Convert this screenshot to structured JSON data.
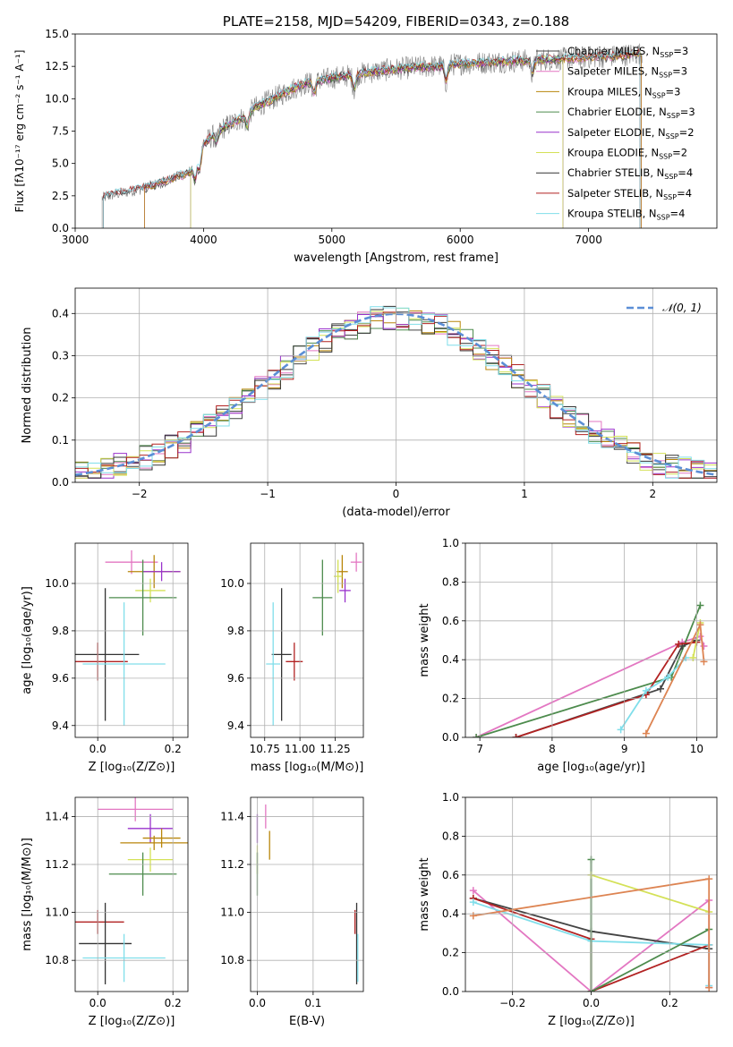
{
  "colors": {
    "Chabrier MILES": "#444444",
    "Salpeter MILES": "#e377c2",
    "Kroupa MILES": "#b8860b",
    "Chabrier ELODIE": "#4d8b4d",
    "Salpeter ELODIE": "#9932cc",
    "Kroupa ELODIE": "#d4e157",
    "Chabrier STELIB": "#333333",
    "Salpeter STELIB": "#b22222",
    "Kroupa STELIB": "#80deea",
    "orange_line": "#dd8452",
    "gauss": "#5b8ed6",
    "spectrum_base": "#808080"
  },
  "chart_data": [
    {
      "id": "spectrum",
      "type": "line",
      "title": "PLATE=2158, MJD=54209, FIBERID=0343, z=0.188",
      "xlabel": "wavelength [Angstrom, rest frame]",
      "ylabel": "Flux [fλ10⁻¹⁷ erg cm⁻² s⁻¹ A⁻¹]",
      "xlim": [
        3000,
        8000
      ],
      "ylim": [
        0,
        15
      ],
      "xticks": [
        3000,
        4000,
        5000,
        6000,
        7000
      ],
      "yticks": [
        0.0,
        2.5,
        5.0,
        7.5,
        10.0,
        12.5,
        15.0
      ],
      "grid": false,
      "legend_position": "right",
      "legend": [
        {
          "name": "Chabrier MILES",
          "nssp": "3"
        },
        {
          "name": "Salpeter MILES",
          "nssp": "3"
        },
        {
          "name": "Kroupa MILES",
          "nssp": "3"
        },
        {
          "name": "Chabrier ELODIE",
          "nssp": "3"
        },
        {
          "name": "Salpeter ELODIE",
          "nssp": "2"
        },
        {
          "name": "Kroupa ELODIE",
          "nssp": "2"
        },
        {
          "name": "Chabrier STELIB",
          "nssp": "4"
        },
        {
          "name": "Salpeter STELIB",
          "nssp": "4"
        },
        {
          "name": "Kroupa STELIB",
          "nssp": "4"
        }
      ],
      "continuum": {
        "x": [
          3200,
          3300,
          3400,
          3500,
          3600,
          3700,
          3800,
          3900,
          4000,
          4100,
          4200,
          4300,
          4400,
          4500,
          4600,
          4700,
          4800,
          4900,
          5000,
          5200,
          5400,
          5600,
          5800,
          6000,
          6200,
          6400,
          6600,
          6800,
          7000,
          7200,
          7400
        ],
        "y": [
          2.3,
          2.6,
          2.8,
          3.0,
          3.3,
          3.6,
          4.0,
          4.4,
          6.5,
          7.4,
          8.0,
          8.5,
          9.3,
          9.8,
          10.3,
          10.8,
          11.2,
          11.4,
          11.6,
          11.9,
          12.2,
          12.4,
          12.5,
          12.7,
          12.8,
          12.9,
          13.0,
          13.1,
          13.2,
          13.3,
          13.5
        ]
      },
      "model_ranges": {
        "Chabrier MILES": [
          3540,
          7410
        ],
        "Salpeter MILES": [
          3540,
          7410
        ],
        "Kroupa MILES": [
          3540,
          7410
        ],
        "Chabrier ELODIE": [
          3900,
          6800
        ],
        "Salpeter ELODIE": [
          3900,
          6800
        ],
        "Kroupa ELODIE": [
          3900,
          6800
        ],
        "Chabrier STELIB": [
          3220,
          7400
        ],
        "Salpeter STELIB": [
          3220,
          7400
        ],
        "Kroupa STELIB": [
          3220,
          7400
        ]
      }
    },
    {
      "id": "residuals",
      "type": "histogram",
      "xlabel": "(data-model)/error",
      "ylabel": "Normed distribution",
      "xlim": [
        -2.5,
        2.5
      ],
      "ylim": [
        0,
        0.46
      ],
      "xticks": [
        -2,
        -1,
        0,
        1,
        2
      ],
      "yticks": [
        0.0,
        0.1,
        0.2,
        0.3,
        0.4
      ],
      "grid": true,
      "legend_position": "top-right",
      "gauss_label": "𝒩(0, 1)"
    },
    {
      "id": "age-vs-Z",
      "type": "scatter",
      "xlabel": "Z [log₁₀(Z/Z⊙)]",
      "ylabel": "age  [log₁₀(age/yr)]",
      "xlim": [
        -0.06,
        0.24
      ],
      "ylim": [
        9.35,
        10.17
      ],
      "xticks": [
        0.0,
        0.2
      ],
      "yticks": [
        9.4,
        9.6,
        9.8,
        10.0
      ],
      "grid": true,
      "points": [
        {
          "model": "Salpeter MILES",
          "x": 0.09,
          "y": 10.09,
          "xerr": 0.07,
          "yerr": 0.05
        },
        {
          "model": "Kroupa MILES",
          "x": 0.15,
          "y": 10.05,
          "xerr": 0.07,
          "yerr": 0.07
        },
        {
          "model": "Salpeter ELODIE",
          "x": 0.17,
          "y": 10.05,
          "xerr": 0.05,
          "yerr": 0.04
        },
        {
          "model": "Kroupa ELODIE",
          "x": 0.14,
          "y": 9.97,
          "xerr": 0.04,
          "yerr": 0.05
        },
        {
          "model": "Chabrier ELODIE",
          "x": 0.12,
          "y": 9.94,
          "xerr": 0.09,
          "yerr": 0.16
        },
        {
          "model": "Chabrier STELIB",
          "x": 0.02,
          "y": 9.7,
          "xerr": 0.09,
          "yerr": 0.28
        },
        {
          "model": "Salpeter STELIB",
          "x": 0.0,
          "y": 9.67,
          "xerr": 0.08,
          "yerr": 0.08
        },
        {
          "model": "Kroupa STELIB",
          "x": 0.07,
          "y": 9.66,
          "xerr": 0.11,
          "yerr": 0.26
        }
      ]
    },
    {
      "id": "age-vs-mass",
      "type": "scatter",
      "xlabel": "mass [log₁₀(M/M⊙)]",
      "ylabel": "",
      "xlim": [
        10.65,
        11.45
      ],
      "ylim": [
        9.35,
        10.17
      ],
      "xticks": [
        10.75,
        11.0,
        11.25
      ],
      "xticklabels": [
        "10.75",
        "11.00",
        "11.25"
      ],
      "yticks": [
        9.4,
        9.6,
        9.8,
        10.0
      ],
      "grid": true,
      "points": [
        {
          "model": "Salpeter MILES",
          "x": 11.4,
          "y": 10.09,
          "xerr": 0.04,
          "yerr": 0.04
        },
        {
          "model": "Kroupa MILES",
          "x": 11.3,
          "y": 10.05,
          "xerr": 0.04,
          "yerr": 0.07
        },
        {
          "model": "Salpeter ELODIE",
          "x": 11.32,
          "y": 9.97,
          "xerr": 0.04,
          "yerr": 0.05
        },
        {
          "model": "Kroupa ELODIE",
          "x": 11.27,
          "y": 10.03,
          "xerr": 0.03,
          "yerr": 0.07
        },
        {
          "model": "Chabrier ELODIE",
          "x": 11.16,
          "y": 9.94,
          "xerr": 0.07,
          "yerr": 0.16
        },
        {
          "model": "Chabrier STELIB",
          "x": 10.87,
          "y": 9.7,
          "xerr": 0.07,
          "yerr": 0.28
        },
        {
          "model": "Salpeter STELIB",
          "x": 10.96,
          "y": 9.67,
          "xerr": 0.06,
          "yerr": 0.08
        },
        {
          "model": "Kroupa STELIB",
          "x": 10.81,
          "y": 9.66,
          "xerr": 0.05,
          "yerr": 0.26
        }
      ]
    },
    {
      "id": "massweight-vs-age",
      "type": "line",
      "xlabel": "age  [log₁₀(age/yr)]",
      "ylabel": "mass weight",
      "xlim": [
        6.8,
        10.28
      ],
      "ylim": [
        0,
        1.0
      ],
      "xticks": [
        7,
        8,
        9,
        10
      ],
      "yticks": [
        0.0,
        0.2,
        0.4,
        0.6,
        0.8,
        1.0
      ],
      "grid": true,
      "series": [
        {
          "model": "Salpeter MILES",
          "x": [
            6.95,
            9.8,
            10.05,
            10.1
          ],
          "y": [
            0.0,
            0.49,
            0.52,
            0.47
          ]
        },
        {
          "model": "Chabrier ELODIE",
          "x": [
            6.95,
            9.65,
            10.05
          ],
          "y": [
            0.0,
            0.31,
            0.68
          ]
        },
        {
          "model": "Chabrier MILES",
          "x": [
            7.5,
            9.5,
            9.8,
            10.0
          ],
          "y": [
            0.0,
            0.25,
            0.47,
            0.5
          ]
        },
        {
          "model": "Salpeter STELIB",
          "x": [
            7.5,
            9.3,
            9.75,
            10.0
          ],
          "y": [
            0.0,
            0.22,
            0.48,
            0.49
          ]
        },
        {
          "model": "Kroupa STELIB",
          "x": [
            8.95,
            9.3,
            9.6,
            9.85
          ],
          "y": [
            0.04,
            0.24,
            0.31,
            0.41
          ]
        },
        {
          "model": "Kroupa ELODIE",
          "x": [
            9.95,
            10.05
          ],
          "y": [
            0.41,
            0.59
          ]
        },
        {
          "model": "orange",
          "x": [
            9.3,
            10.05,
            10.1
          ],
          "y": [
            0.02,
            0.58,
            0.39
          ]
        }
      ]
    },
    {
      "id": "mass-vs-Z",
      "type": "scatter",
      "xlabel": "Z [log₁₀(Z/Z⊙)]",
      "ylabel": "mass [log₁₀(M/M⊙)]",
      "xlim": [
        -0.06,
        0.24
      ],
      "ylim": [
        10.67,
        11.48
      ],
      "xticks": [
        0.0,
        0.2
      ],
      "yticks": [
        10.8,
        11.0,
        11.2,
        11.4
      ],
      "grid": true,
      "points": [
        {
          "model": "Salpeter MILES",
          "x": 0.1,
          "y": 11.43,
          "xerr": 0.1,
          "yerr": 0.05
        },
        {
          "model": "Salpeter ELODIE",
          "x": 0.14,
          "y": 11.35,
          "xerr": 0.06,
          "yerr": 0.06
        },
        {
          "model": "Kroupa MILES",
          "x": 0.17,
          "y": 11.31,
          "xerr": 0.05,
          "yerr": 0.04
        },
        {
          "model": "Kroupa MILES",
          "x": 0.15,
          "y": 11.29,
          "xerr": 0.09,
          "yerr": 0.03
        },
        {
          "model": "Kroupa ELODIE",
          "x": 0.14,
          "y": 11.22,
          "xerr": 0.06,
          "yerr": 0.05
        },
        {
          "model": "Chabrier ELODIE",
          "x": 0.12,
          "y": 11.16,
          "xerr": 0.09,
          "yerr": 0.09
        },
        {
          "model": "Salpeter STELIB",
          "x": 0.0,
          "y": 10.96,
          "xerr": 0.07,
          "yerr": 0.05
        },
        {
          "model": "Chabrier STELIB",
          "x": 0.02,
          "y": 10.87,
          "xerr": 0.07,
          "yerr": 0.17
        },
        {
          "model": "Kroupa STELIB",
          "x": 0.07,
          "y": 10.81,
          "xerr": 0.11,
          "yerr": 0.1
        }
      ]
    },
    {
      "id": "mass-vs-EBV",
      "type": "scatter",
      "xlabel": "E(B-V)",
      "ylabel": "",
      "xlim": [
        -0.012,
        0.19
      ],
      "ylim": [
        10.67,
        11.48
      ],
      "xticks": [
        0.0,
        0.1
      ],
      "yticks": [
        10.8,
        11.0,
        11.2,
        11.4
      ],
      "grid": true,
      "points": [
        {
          "model": "Salpeter ELODIE",
          "x": 0.0,
          "y": 11.35,
          "xerr": 0.0,
          "yerr": 0.06
        },
        {
          "model": "Salpeter MILES",
          "x": 0.015,
          "y": 11.4,
          "xerr": 0.0,
          "yerr": 0.05
        },
        {
          "model": "Kroupa MILES",
          "x": 0.022,
          "y": 11.28,
          "xerr": 0.0,
          "yerr": 0.06
        },
        {
          "model": "Kroupa ELODIE",
          "x": 0.0,
          "y": 11.22,
          "xerr": 0.0,
          "yerr": 0.06
        },
        {
          "model": "Chabrier ELODIE",
          "x": 0.0,
          "y": 11.16,
          "xerr": 0.0,
          "yerr": 0.09
        },
        {
          "model": "Salpeter STELIB",
          "x": 0.175,
          "y": 10.96,
          "xerr": 0.0,
          "yerr": 0.05
        },
        {
          "model": "Chabrier STELIB",
          "x": 0.178,
          "y": 10.87,
          "xerr": 0.0,
          "yerr": 0.17
        },
        {
          "model": "Kroupa STELIB",
          "x": 0.18,
          "y": 10.81,
          "xerr": 0.0,
          "yerr": 0.1
        }
      ]
    },
    {
      "id": "massweight-vs-Z",
      "type": "line",
      "xlabel": "Z [log₁₀(Z/Z⊙)]",
      "ylabel": "mass weight",
      "xlim": [
        -0.32,
        0.32
      ],
      "ylim": [
        0,
        1.0
      ],
      "xticks": [
        -0.2,
        0.0,
        0.2
      ],
      "yticks": [
        0.0,
        0.2,
        0.4,
        0.6,
        0.8,
        1.0
      ],
      "grid": true,
      "series": [
        {
          "model": "Salpeter MILES",
          "x": [
            -0.3,
            0.0,
            0.3,
            0.3
          ],
          "y": [
            0.52,
            0.0,
            0.47,
            0.02
          ]
        },
        {
          "model": "Chabrier MILES",
          "x": [
            -0.3,
            0.0,
            0.3
          ],
          "y": [
            0.48,
            0.31,
            0.22
          ]
        },
        {
          "model": "Salpeter STELIB",
          "x": [
            -0.3,
            0.0,
            0.0,
            0.3
          ],
          "y": [
            0.48,
            0.27,
            0.0,
            0.24
          ]
        },
        {
          "model": "Kroupa STELIB",
          "x": [
            -0.3,
            0.0,
            0.3,
            0.3
          ],
          "y": [
            0.46,
            0.26,
            0.24,
            0.03
          ]
        },
        {
          "model": "Chabrier ELODIE",
          "x": [
            0.0,
            0.0,
            0.3
          ],
          "y": [
            0.68,
            0.0,
            0.32
          ]
        },
        {
          "model": "Kroupa ELODIE",
          "x": [
            0.0,
            0.3
          ],
          "y": [
            0.6,
            0.41
          ]
        },
        {
          "model": "orange",
          "x": [
            -0.3,
            0.3,
            0.3
          ],
          "y": [
            0.39,
            0.58,
            0.02
          ]
        }
      ]
    }
  ]
}
